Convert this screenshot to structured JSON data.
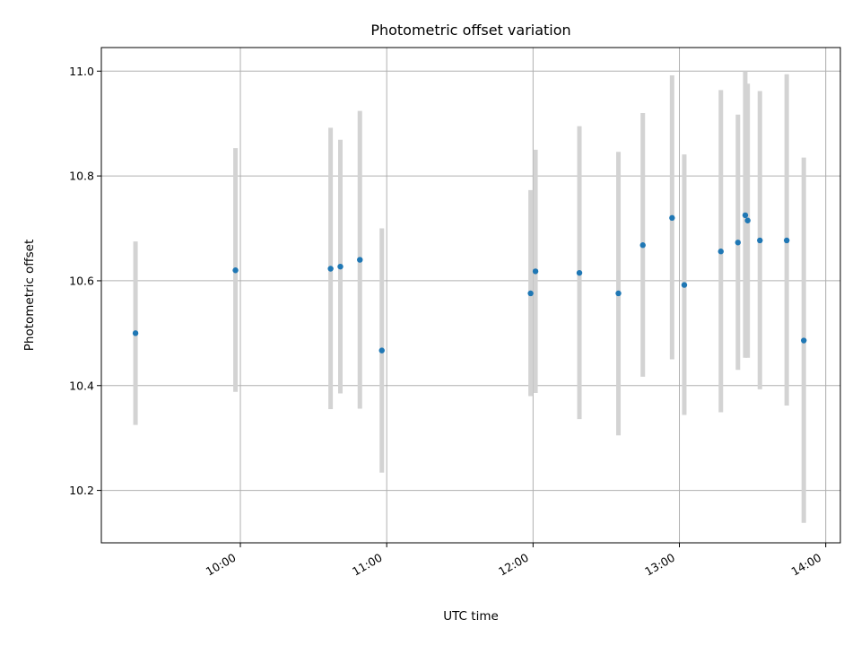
{
  "chart_data": {
    "type": "scatter",
    "title": "Photometric offset variation",
    "xlabel": "UTC time",
    "ylabel": "Photometric offset",
    "x_axis_type": "time",
    "xlim": [
      "09:03",
      "14:06"
    ],
    "ylim": [
      10.1,
      11.045
    ],
    "x_ticks": [
      "10:00",
      "11:00",
      "12:00",
      "13:00",
      "14:00"
    ],
    "y_ticks": [
      10.2,
      10.4,
      10.6,
      10.8,
      11.0
    ],
    "y_tick_labels": [
      "10.2",
      "10.4",
      "10.6",
      "10.8",
      "11.0"
    ],
    "grid": true,
    "marker_color": "#1f77b4",
    "errorbar_color": "#d3d3d3",
    "points": [
      {
        "x": "09:17",
        "y": 10.5,
        "ylo": 10.325,
        "yhi": 10.675
      },
      {
        "x": "09:58",
        "y": 10.62,
        "ylo": 10.388,
        "yhi": 10.853
      },
      {
        "x": "10:37",
        "y": 10.623,
        "ylo": 10.355,
        "yhi": 10.892
      },
      {
        "x": "10:41",
        "y": 10.627,
        "ylo": 10.385,
        "yhi": 10.869
      },
      {
        "x": "10:49",
        "y": 10.64,
        "ylo": 10.356,
        "yhi": 10.924
      },
      {
        "x": "10:58",
        "y": 10.467,
        "ylo": 10.234,
        "yhi": 10.7
      },
      {
        "x": "11:59",
        "y": 10.576,
        "ylo": 10.38,
        "yhi": 10.773
      },
      {
        "x": "12:01",
        "y": 10.618,
        "ylo": 10.386,
        "yhi": 10.85
      },
      {
        "x": "12:19",
        "y": 10.615,
        "ylo": 10.336,
        "yhi": 10.895
      },
      {
        "x": "12:35",
        "y": 10.576,
        "ylo": 10.305,
        "yhi": 10.846
      },
      {
        "x": "12:45",
        "y": 10.668,
        "ylo": 10.417,
        "yhi": 10.92
      },
      {
        "x": "12:57",
        "y": 10.72,
        "ylo": 10.45,
        "yhi": 10.992
      },
      {
        "x": "13:02",
        "y": 10.592,
        "ylo": 10.344,
        "yhi": 10.841
      },
      {
        "x": "13:17",
        "y": 10.656,
        "ylo": 10.349,
        "yhi": 10.964
      },
      {
        "x": "13:24",
        "y": 10.673,
        "ylo": 10.43,
        "yhi": 10.917
      },
      {
        "x": "13:27",
        "y": 10.725,
        "ylo": 10.453,
        "yhi": 11.0
      },
      {
        "x": "13:28",
        "y": 10.715,
        "ylo": 10.453,
        "yhi": 10.976
      },
      {
        "x": "13:33",
        "y": 10.677,
        "ylo": 10.393,
        "yhi": 10.962
      },
      {
        "x": "13:44",
        "y": 10.677,
        "ylo": 10.362,
        "yhi": 10.994
      },
      {
        "x": "13:51",
        "y": 10.486,
        "ylo": 10.138,
        "yhi": 10.835
      }
    ]
  }
}
